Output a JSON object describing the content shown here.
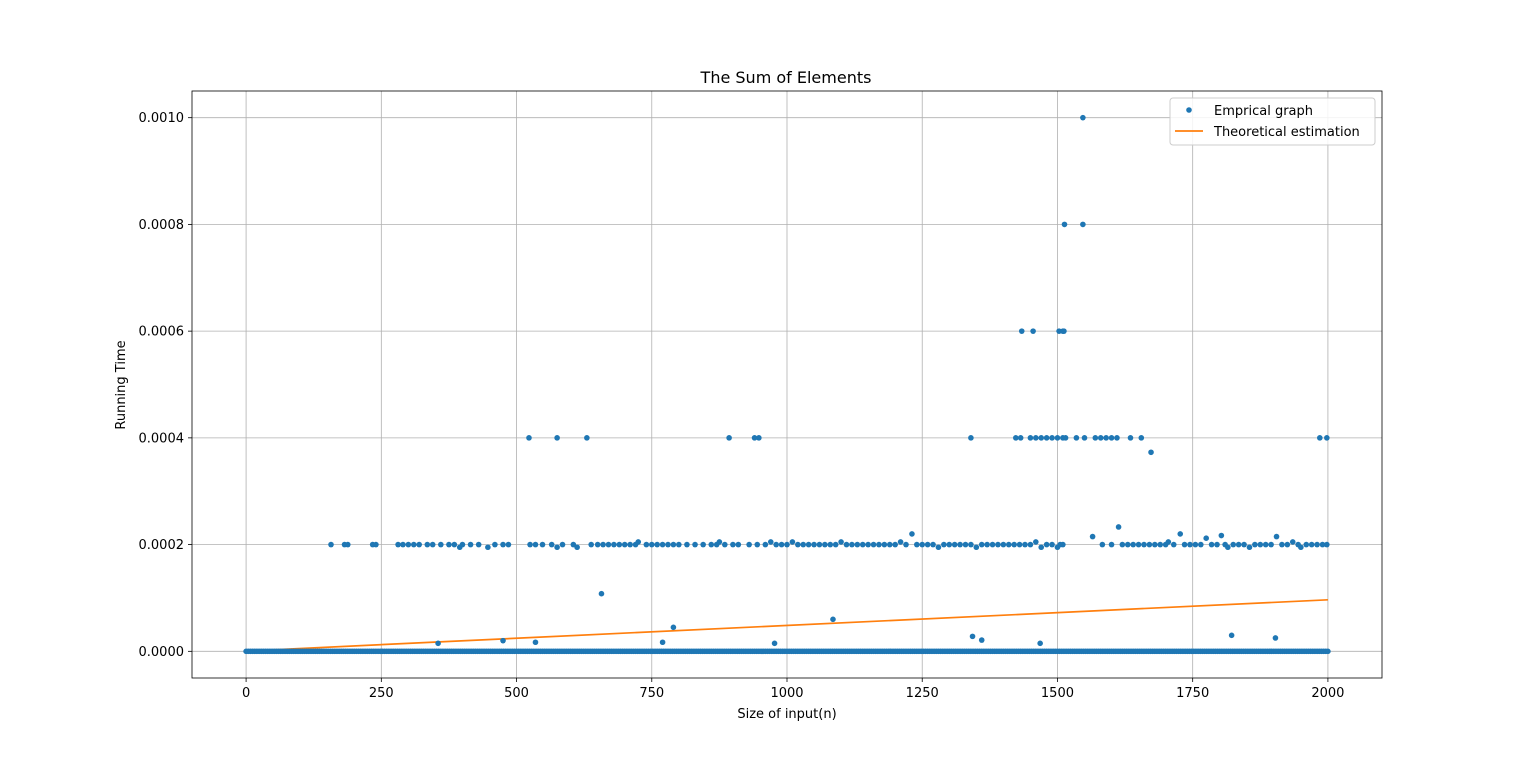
{
  "chart_data": {
    "type": "scatter",
    "title": "The Sum of Elements",
    "xlabel": "Size of input(n)",
    "ylabel": "Running Time",
    "xlim": [
      -100,
      2100
    ],
    "ylim": [
      -5e-05,
      0.00105
    ],
    "xticks": [
      0,
      250,
      500,
      750,
      1000,
      1250,
      1500,
      1750,
      2000
    ],
    "xtick_labels": [
      "0",
      "250",
      "500",
      "750",
      "1000",
      "1250",
      "1500",
      "1750",
      "2000"
    ],
    "yticks": [
      0,
      0.0002,
      0.0004,
      0.0006,
      0.0008,
      0.001
    ],
    "ytick_labels": [
      "0.0000",
      "0.0002",
      "0.0004",
      "0.0006",
      "0.0008",
      "0.0010"
    ],
    "grid": true,
    "legend_position": "upper right",
    "colors": {
      "empirical": "#1f77b4",
      "theoretical": "#ff7f0e"
    },
    "series": [
      {
        "name": "Emprical graph",
        "kind": "points",
        "baseline": {
          "x_from": 0,
          "x_to": 2000,
          "step": 4,
          "y": 0
        },
        "points": [
          [
            157,
            0.0002
          ],
          [
            182,
            0.0002
          ],
          [
            188,
            0.0002
          ],
          [
            234,
            0.0002
          ],
          [
            240,
            0.0002
          ],
          [
            281,
            0.0002
          ],
          [
            290,
            0.0002
          ],
          [
            300,
            0.0002
          ],
          [
            310,
            0.0002
          ],
          [
            320,
            0.0002
          ],
          [
            335,
            0.0002
          ],
          [
            345,
            0.0002
          ],
          [
            360,
            0.0002
          ],
          [
            375,
            0.0002
          ],
          [
            385,
            0.0002
          ],
          [
            395,
            0.000195
          ],
          [
            400,
            0.0002
          ],
          [
            415,
            0.0002
          ],
          [
            430,
            0.0002
          ],
          [
            447,
            0.000195
          ],
          [
            460,
            0.0002
          ],
          [
            475,
            0.0002
          ],
          [
            485,
            0.0002
          ],
          [
            525,
            0.0002
          ],
          [
            535,
            0.0002
          ],
          [
            548,
            0.0002
          ],
          [
            565,
            0.0002
          ],
          [
            575,
            0.000195
          ],
          [
            585,
            0.0002
          ],
          [
            605,
            0.0002
          ],
          [
            612,
            0.000195
          ],
          [
            638,
            0.0002
          ],
          [
            650,
            0.0002
          ],
          [
            660,
            0.0002
          ],
          [
            670,
            0.0002
          ],
          [
            680,
            0.0002
          ],
          [
            690,
            0.0002
          ],
          [
            700,
            0.0002
          ],
          [
            710,
            0.0002
          ],
          [
            720,
            0.0002
          ],
          [
            725,
            0.000205
          ],
          [
            740,
            0.0002
          ],
          [
            750,
            0.0002
          ],
          [
            760,
            0.0002
          ],
          [
            770,
            0.0002
          ],
          [
            780,
            0.0002
          ],
          [
            790,
            0.0002
          ],
          [
            800,
            0.0002
          ],
          [
            815,
            0.0002
          ],
          [
            830,
            0.0002
          ],
          [
            845,
            0.0002
          ],
          [
            860,
            0.0002
          ],
          [
            870,
            0.0002
          ],
          [
            875,
            0.000205
          ],
          [
            885,
            0.0002
          ],
          [
            900,
            0.0002
          ],
          [
            910,
            0.0002
          ],
          [
            930,
            0.0002
          ],
          [
            945,
            0.0002
          ],
          [
            960,
            0.0002
          ],
          [
            970,
            0.000205
          ],
          [
            980,
            0.0002
          ],
          [
            990,
            0.0002
          ],
          [
            1000,
            0.0002
          ],
          [
            1010,
            0.000205
          ],
          [
            1020,
            0.0002
          ],
          [
            1030,
            0.0002
          ],
          [
            1040,
            0.0002
          ],
          [
            1050,
            0.0002
          ],
          [
            1060,
            0.0002
          ],
          [
            1070,
            0.0002
          ],
          [
            1080,
            0.0002
          ],
          [
            1090,
            0.0002
          ],
          [
            1100,
            0.000205
          ],
          [
            1110,
            0.0002
          ],
          [
            1120,
            0.0002
          ],
          [
            1130,
            0.0002
          ],
          [
            1140,
            0.0002
          ],
          [
            1150,
            0.0002
          ],
          [
            1160,
            0.0002
          ],
          [
            1170,
            0.0002
          ],
          [
            1180,
            0.0002
          ],
          [
            1190,
            0.0002
          ],
          [
            1200,
            0.0002
          ],
          [
            1210,
            0.000205
          ],
          [
            1220,
            0.0002
          ],
          [
            1231,
            0.00022
          ],
          [
            1240,
            0.0002
          ],
          [
            1250,
            0.0002
          ],
          [
            1260,
            0.0002
          ],
          [
            1270,
            0.0002
          ],
          [
            1280,
            0.000195
          ],
          [
            1290,
            0.0002
          ],
          [
            1300,
            0.0002
          ],
          [
            1310,
            0.0002
          ],
          [
            1320,
            0.0002
          ],
          [
            1330,
            0.0002
          ],
          [
            1340,
            0.0002
          ],
          [
            1350,
            0.000195
          ],
          [
            1360,
            0.0002
          ],
          [
            1370,
            0.0002
          ],
          [
            1380,
            0.0002
          ],
          [
            1390,
            0.0002
          ],
          [
            1400,
            0.0002
          ],
          [
            1410,
            0.0002
          ],
          [
            1420,
            0.0002
          ],
          [
            1430,
            0.0002
          ],
          [
            1440,
            0.0002
          ],
          [
            1450,
            0.0002
          ],
          [
            1460,
            0.000205
          ],
          [
            1470,
            0.000195
          ],
          [
            1480,
            0.0002
          ],
          [
            1490,
            0.0002
          ],
          [
            1500,
            0.000195
          ],
          [
            1505,
            0.0002
          ],
          [
            1510,
            0.0002
          ],
          [
            1565,
            0.000215
          ],
          [
            1583,
            0.0002
          ],
          [
            1600,
            0.0002
          ],
          [
            1613,
            0.000233
          ],
          [
            1620,
            0.0002
          ],
          [
            1630,
            0.0002
          ],
          [
            1640,
            0.0002
          ],
          [
            1650,
            0.0002
          ],
          [
            1660,
            0.0002
          ],
          [
            1670,
            0.0002
          ],
          [
            1680,
            0.0002
          ],
          [
            1690,
            0.0002
          ],
          [
            1700,
            0.0002
          ],
          [
            1705,
            0.000205
          ],
          [
            1715,
            0.0002
          ],
          [
            1727,
            0.00022
          ],
          [
            1735,
            0.0002
          ],
          [
            1745,
            0.0002
          ],
          [
            1755,
            0.0002
          ],
          [
            1765,
            0.0002
          ],
          [
            1775,
            0.000212
          ],
          [
            1785,
            0.0002
          ],
          [
            1795,
            0.0002
          ],
          [
            1803,
            0.000217
          ],
          [
            1810,
            0.0002
          ],
          [
            1815,
            0.000195
          ],
          [
            1825,
            0.0002
          ],
          [
            1835,
            0.0002
          ],
          [
            1845,
            0.0002
          ],
          [
            1855,
            0.000195
          ],
          [
            1865,
            0.0002
          ],
          [
            1875,
            0.0002
          ],
          [
            1885,
            0.0002
          ],
          [
            1895,
            0.0002
          ],
          [
            1905,
            0.000215
          ],
          [
            1915,
            0.0002
          ],
          [
            1925,
            0.0002
          ],
          [
            1935,
            0.000205
          ],
          [
            1945,
            0.0002
          ],
          [
            1950,
            0.000195
          ],
          [
            1960,
            0.0002
          ],
          [
            1970,
            0.0002
          ],
          [
            1980,
            0.0002
          ],
          [
            1990,
            0.0002
          ],
          [
            1998,
            0.0002
          ],
          [
            523,
            0.0004
          ],
          [
            575,
            0.0004
          ],
          [
            630,
            0.0004
          ],
          [
            893,
            0.0004
          ],
          [
            940,
            0.0004
          ],
          [
            948,
            0.0004
          ],
          [
            1340,
            0.0004
          ],
          [
            1423,
            0.0004
          ],
          [
            1432,
            0.0004
          ],
          [
            1450,
            0.0004
          ],
          [
            1460,
            0.0004
          ],
          [
            1470,
            0.0004
          ],
          [
            1480,
            0.0004
          ],
          [
            1490,
            0.0004
          ],
          [
            1500,
            0.0004
          ],
          [
            1510,
            0.0004
          ],
          [
            1515,
            0.0004
          ],
          [
            1535,
            0.0004
          ],
          [
            1550,
            0.0004
          ],
          [
            1570,
            0.0004
          ],
          [
            1580,
            0.0004
          ],
          [
            1590,
            0.0004
          ],
          [
            1600,
            0.0004
          ],
          [
            1610,
            0.0004
          ],
          [
            1635,
            0.0004
          ],
          [
            1655,
            0.0004
          ],
          [
            1673,
            0.000373
          ],
          [
            1985,
            0.0004
          ],
          [
            1998,
            0.0004
          ],
          [
            1434,
            0.0006
          ],
          [
            1455,
            0.0006
          ],
          [
            1503,
            0.0006
          ],
          [
            1510,
            0.0006
          ],
          [
            1512,
            0.0006
          ],
          [
            1513,
            0.0008
          ],
          [
            1547,
            0.0008
          ],
          [
            1547,
            0.001
          ],
          [
            657,
            0.000108
          ],
          [
            1085,
            6e-05
          ],
          [
            790,
            4.5e-05
          ],
          [
            355,
            1.5e-05
          ],
          [
            475,
            2e-05
          ],
          [
            535,
            1.7e-05
          ],
          [
            770,
            1.7e-05
          ],
          [
            977,
            1.5e-05
          ],
          [
            1343,
            2.8e-05
          ],
          [
            1360,
            2.1e-05
          ],
          [
            1468,
            1.5e-05
          ],
          [
            1822,
            3e-05
          ],
          [
            1903,
            2.5e-05
          ]
        ]
      },
      {
        "name": "Theoretical estimation",
        "kind": "line",
        "x": [
          0,
          2000
        ],
        "y": [
          5e-07,
          9.65e-05
        ]
      }
    ]
  }
}
